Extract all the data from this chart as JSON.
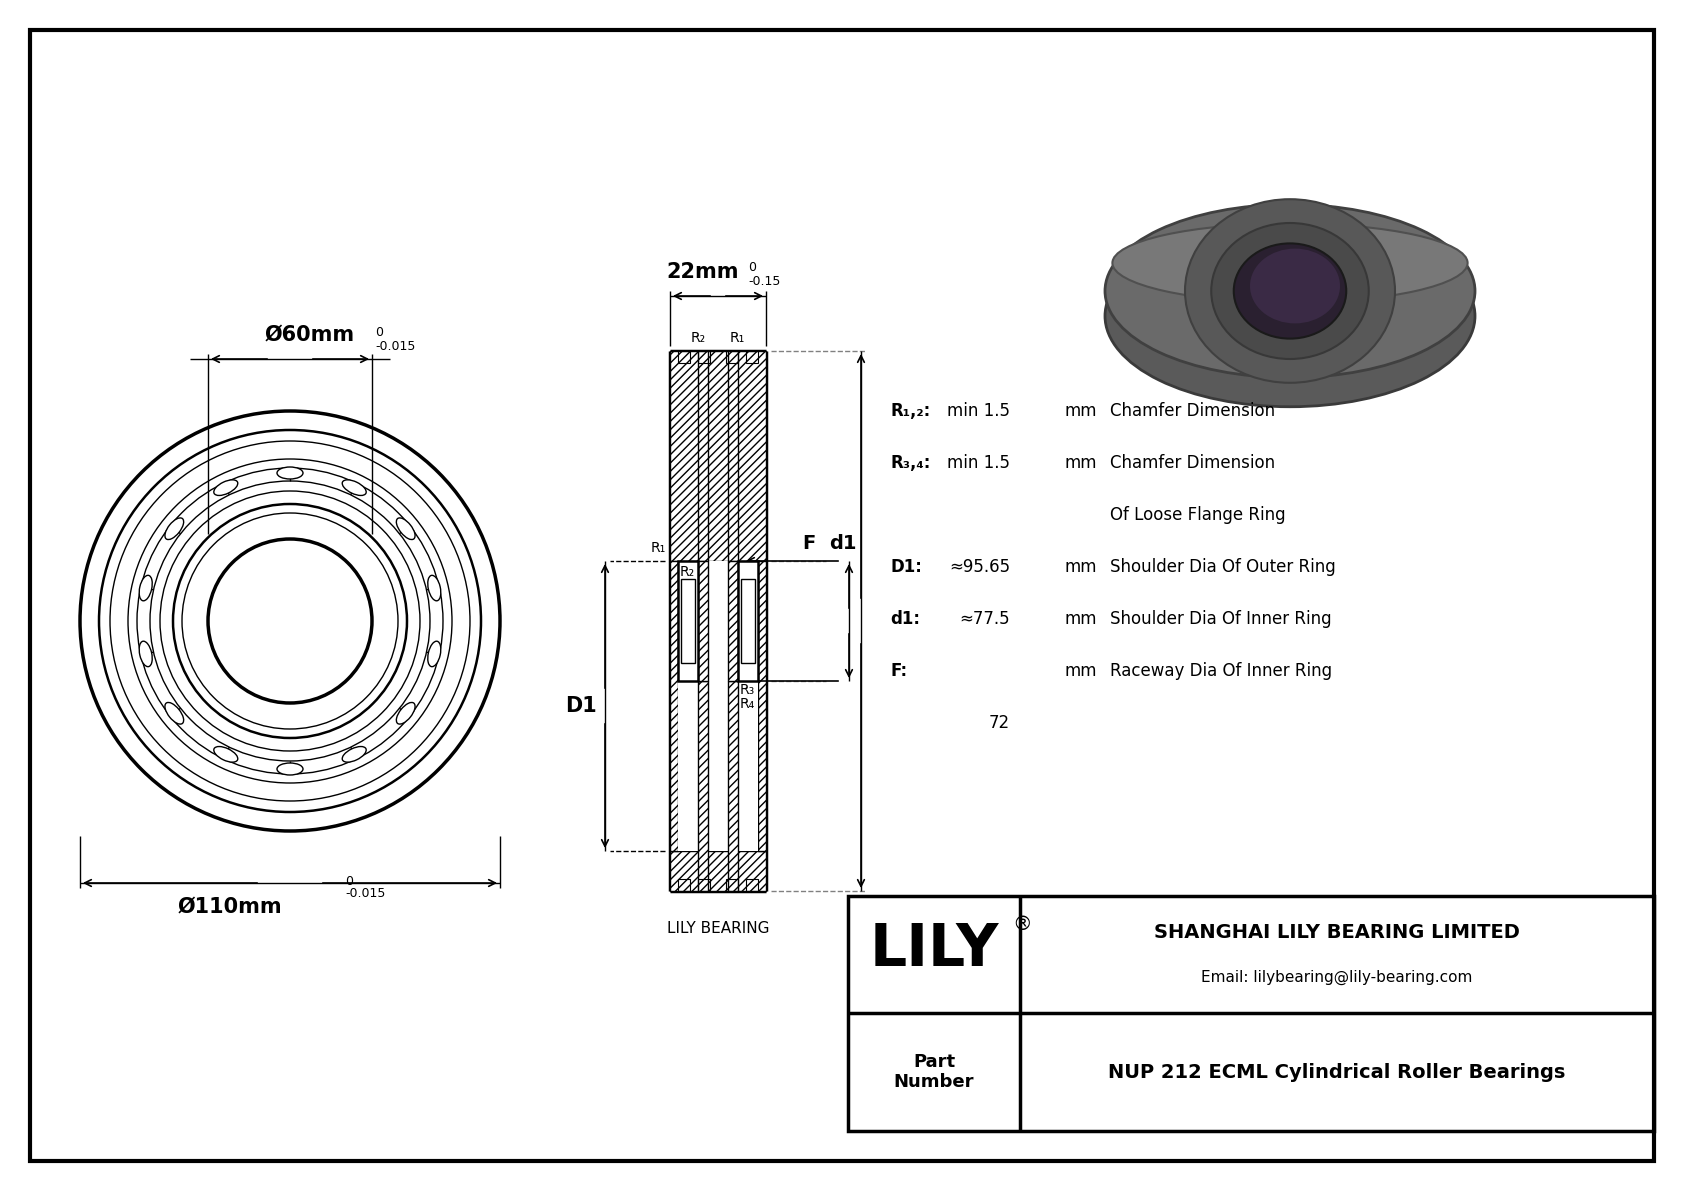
{
  "bg_color": "#ffffff",
  "line_color": "#000000",
  "company": "SHANGHAI LILY BEARING LIMITED",
  "email": "Email: lilybearing@lily-bearing.com",
  "part_number": "NUP 212 ECML Cylindrical Roller Bearings",
  "watermark": "LILY BEARING",
  "dim_outer": "Ø110mm",
  "dim_outer_tol_top": "0",
  "dim_outer_tol_bot": "-0.015",
  "dim_inner": "Ø60mm",
  "dim_inner_tol_top": "0",
  "dim_inner_tol_bot": "-0.015",
  "dim_width": "22mm",
  "dim_width_tol_top": "0",
  "dim_width_tol_bot": "-0.15",
  "spec_rows": [
    {
      "label": "R₁,₂:",
      "value": "min 1.5",
      "unit": "mm",
      "desc": "Chamfer Dimension"
    },
    {
      "label": "R₃,₄:",
      "value": "min 1.5",
      "unit": "mm",
      "desc": "Chamfer Dimension"
    },
    {
      "label": "",
      "value": "",
      "unit": "",
      "desc": "Of Loose Flange Ring"
    },
    {
      "label": "D1:",
      "value": "≈95.65",
      "unit": "mm",
      "desc": "Shoulder Dia Of Outer Ring"
    },
    {
      "label": "d1:",
      "value": "≈77.5",
      "unit": "mm",
      "desc": "Shoulder Dia Of Inner Ring"
    },
    {
      "label": "F:",
      "value": "",
      "unit": "mm",
      "desc": "Raceway Dia Of Inner Ring"
    },
    {
      "label": "",
      "value": "72",
      "unit": "",
      "desc": ""
    }
  ]
}
